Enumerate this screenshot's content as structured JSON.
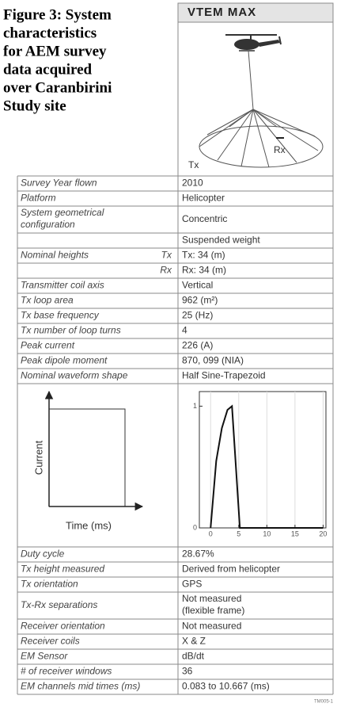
{
  "figure_caption": [
    "Figure 3: System",
    "characteristics",
    "for AEM survey",
    "data acquired",
    "over Caranbirini",
    "Study site"
  ],
  "header": {
    "title": "VTEM MAX",
    "tx_label": "Tx",
    "rx_label": "Rx"
  },
  "table": {
    "rows": [
      {
        "label": "Survey Year flown",
        "value": "2010"
      },
      {
        "label": "Platform",
        "value": "Helicopter"
      },
      {
        "label": [
          "System geometrical",
          "configuration"
        ],
        "value": "Concentric"
      },
      {
        "value": "Suspended weight"
      },
      {
        "label": "Nominal heights",
        "sublabel": "Tx",
        "value": "Tx: 34 (m)"
      },
      {
        "sublabel": "Rx",
        "value": "Rx: 34 (m)"
      },
      {
        "label": "Transmitter coil axis",
        "value": "Vertical"
      },
      {
        "label": "Tx loop area",
        "value": "962 (m²)"
      },
      {
        "label": "Tx base frequency",
        "value": "25 (Hz)"
      },
      {
        "label": "Tx number of loop turns",
        "value": "4"
      },
      {
        "label": "Peak current",
        "value": "226 (A)"
      },
      {
        "label": "Peak dipole moment",
        "value": "870, 099 (NIA)"
      },
      {
        "label": "Nominal waveform shape",
        "value": "Half Sine-Trapezoid"
      },
      {
        "plot": true
      },
      {
        "label": "Duty cycle",
        "value": "28.67%"
      },
      {
        "label": "Tx height measured",
        "value": "Derived from helicopter"
      },
      {
        "label": "Tx orientation",
        "value": "GPS"
      },
      {
        "label": "Tx-Rx separations",
        "value": [
          "Not measured",
          "(flexible frame)"
        ]
      },
      {
        "label": "Receiver orientation",
        "value": "Not measured"
      },
      {
        "label": "Receiver coils",
        "value": "X & Z"
      },
      {
        "label": "EM Sensor",
        "value": "dB/dt"
      },
      {
        "label": "# of receiver windows",
        "value": "36"
      },
      {
        "label": "EM channels mid times (ms)",
        "value": "0.083 to 10.667 (ms)"
      }
    ]
  },
  "waveform": {
    "ylabel": "Current",
    "xlabel": "Time (ms)",
    "xlim": [
      -2,
      20.5
    ],
    "ylim": [
      0,
      1.12
    ],
    "xticks": [
      0,
      5,
      10,
      15,
      20
    ],
    "yticks": [
      0,
      1
    ],
    "curve": {
      "x": [
        0,
        1,
        2,
        3,
        3.8,
        5.2,
        20
      ],
      "y": [
        0,
        0.55,
        0.82,
        0.97,
        1,
        0,
        0
      ]
    }
  },
  "figure_code": "TM005-1"
}
